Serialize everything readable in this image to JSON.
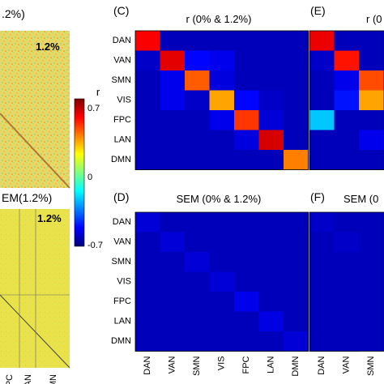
{
  "panels": {
    "left_top_title": ".2%)",
    "left_top_badge": "1.2%",
    "left_bottom_title": "EM(1.2%)",
    "left_bottom_badge": "1.2%",
    "left_xticks": [
      "FPC",
      "LAN",
      "DMN"
    ],
    "C": {
      "label": "(C)",
      "title": "r (0% & 1.2%)"
    },
    "E": {
      "label": "(E)",
      "title": "r (0"
    },
    "D": {
      "label": "(D)",
      "title": "SEM (0% & 1.2%)"
    },
    "F": {
      "label": "(F)",
      "title": "SEM (0"
    }
  },
  "colorbar": {
    "label": "r",
    "ticks": [
      "0.7",
      "0",
      "-0.7"
    ],
    "colors": [
      "#00007f",
      "#0000ff",
      "#007fff",
      "#00ffff",
      "#7fff7f",
      "#ffff00",
      "#ff7f00",
      "#ff0000",
      "#7f0000"
    ]
  },
  "chart_data": [
    {
      "type": "heatmap",
      "panel": "C",
      "title": "r (0% & 1.2%)",
      "rows": [
        "DAN",
        "VAN",
        "SMN",
        "VIS",
        "FPC",
        "LAN",
        "DMN"
      ],
      "columns": [],
      "zlim": [
        -0.7,
        0.7
      ],
      "values": [
        [
          0.53,
          -0.62,
          -0.62,
          -0.62,
          -0.62,
          -0.62,
          -0.62
        ],
        [
          -0.6,
          0.56,
          -0.52,
          -0.55,
          -0.62,
          -0.62,
          -0.62
        ],
        [
          -0.62,
          -0.55,
          0.4,
          -0.57,
          -0.62,
          -0.62,
          -0.62
        ],
        [
          -0.62,
          -0.55,
          -0.6,
          0.3,
          -0.52,
          -0.6,
          -0.62
        ],
        [
          -0.62,
          -0.62,
          -0.62,
          -0.55,
          0.45,
          -0.58,
          -0.62
        ],
        [
          -0.62,
          -0.62,
          -0.62,
          -0.62,
          -0.57,
          0.58,
          -0.62
        ],
        [
          -0.62,
          -0.62,
          -0.62,
          -0.62,
          -0.62,
          -0.62,
          0.35
        ]
      ]
    },
    {
      "type": "heatmap",
      "panel": "D",
      "title": "SEM (0% & 1.2%)",
      "rows": [
        "DAN",
        "VAN",
        "SMN",
        "VIS",
        "FPC",
        "LAN",
        "DMN"
      ],
      "columns": [
        "DAN",
        "VAN",
        "SMN",
        "VIS",
        "FPC",
        "LAN",
        "DMN"
      ],
      "zlim": [
        -0.7,
        0.7
      ],
      "values": [
        [
          -0.58,
          -0.62,
          -0.62,
          -0.62,
          -0.62,
          -0.62,
          -0.62
        ],
        [
          -0.62,
          -0.58,
          -0.62,
          -0.62,
          -0.62,
          -0.62,
          -0.62
        ],
        [
          -0.62,
          -0.62,
          -0.58,
          -0.62,
          -0.62,
          -0.62,
          -0.62
        ],
        [
          -0.62,
          -0.62,
          -0.62,
          -0.58,
          -0.62,
          -0.62,
          -0.62
        ],
        [
          -0.62,
          -0.62,
          -0.62,
          -0.62,
          -0.55,
          -0.62,
          -0.62
        ],
        [
          -0.62,
          -0.62,
          -0.62,
          -0.62,
          -0.62,
          -0.56,
          -0.62
        ],
        [
          -0.62,
          -0.62,
          -0.62,
          -0.62,
          -0.62,
          -0.62,
          -0.58
        ]
      ]
    },
    {
      "type": "heatmap",
      "panel": "E",
      "title": "r (0",
      "rows": [],
      "columns": [],
      "zlim": [
        -0.7,
        0.7
      ],
      "values": [
        [
          0.55,
          -0.62
        ],
        [
          -0.6,
          0.5
        ],
        [
          -0.62,
          -0.55
        ],
        [
          -0.62,
          -0.5
        ],
        [
          -0.25,
          -0.62
        ],
        [
          -0.62,
          -0.62
        ],
        [
          -0.62,
          -0.62
        ]
      ],
      "extra_partial_column": [
        -0.62,
        -0.62,
        0.42,
        0.3,
        -0.62,
        -0.55,
        -0.62
      ]
    },
    {
      "type": "heatmap",
      "panel": "F",
      "title": "SEM (0",
      "rows": [],
      "columns": [
        "DAN",
        "VAN",
        "SMN"
      ],
      "zlim": [
        -0.7,
        0.7
      ],
      "values": [
        [
          -0.6,
          -0.62
        ],
        [
          -0.62,
          -0.6
        ],
        [
          -0.62,
          -0.62
        ],
        [
          -0.62,
          -0.62
        ],
        [
          -0.62,
          -0.62
        ],
        [
          -0.62,
          -0.62
        ],
        [
          -0.62,
          -0.62
        ]
      ]
    }
  ]
}
